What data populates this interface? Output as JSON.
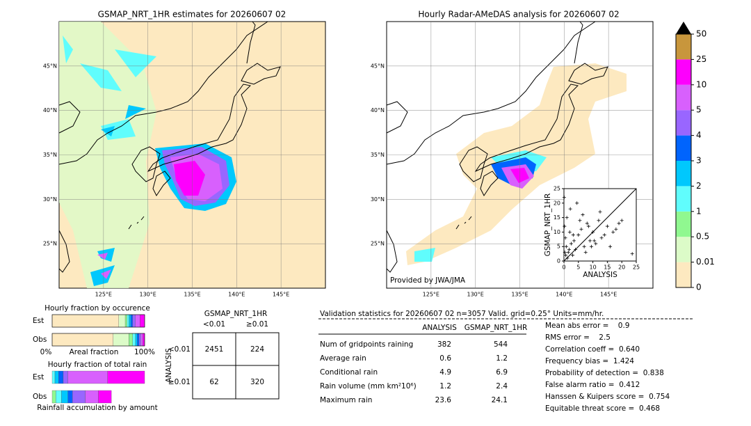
{
  "left_map": {
    "title": "GSMAP_NRT_1HR estimates for 20260607 02",
    "lat_labels": [
      "45°N",
      "40°N",
      "35°N",
      "30°N",
      "25°N"
    ],
    "lon_labels": [
      "125°E",
      "130°E",
      "135°E",
      "140°E",
      "145°E"
    ]
  },
  "right_map": {
    "title": "Hourly Radar-AMeDAS analysis for 20260607 02",
    "lat_labels": [
      "45°N",
      "40°N",
      "35°N",
      "30°N",
      "25°N"
    ],
    "lon_labels": [
      "125°E",
      "130°E",
      "135°E",
      "140°E",
      "145°E"
    ],
    "credit": "Provided by JWA/JMA"
  },
  "colorbar": {
    "ticks": [
      0,
      0.01,
      0.5,
      1,
      2,
      3,
      4,
      5,
      10,
      25,
      50
    ],
    "colors": [
      "#fde9c0",
      "#dcfbc8",
      "#90f890",
      "#60fdfd",
      "#00c8fd",
      "#0064fd",
      "#9966ff",
      "#d860fd",
      "#fd00fd",
      "#c8963c"
    ]
  },
  "scatter": {
    "type": "scatter",
    "xlabel": "ANALYSIS",
    "ylabel": "GSMAP_NRT_1HR",
    "xlim": [
      0,
      25
    ],
    "ylim": [
      0,
      25
    ],
    "xticks": [
      0,
      5,
      10,
      15,
      20,
      25
    ],
    "yticks": [
      0,
      5,
      10,
      15,
      20,
      25
    ],
    "x": [
      0.2,
      0.5,
      0.8,
      1,
      1.5,
      2,
      2.5,
      3,
      3.5,
      4,
      5,
      6,
      7,
      8,
      9,
      10,
      11,
      12,
      13,
      14,
      15,
      16,
      18,
      20,
      23.6,
      0.3,
      1.2,
      2.2,
      4.5,
      6.5,
      8.5,
      10.5,
      12.5,
      0.1,
      0.6,
      1.8,
      3.2,
      5.5,
      7.5,
      17,
      19,
      9.5
    ],
    "y": [
      12,
      8,
      5,
      15,
      3,
      10,
      6,
      2,
      7,
      4,
      9,
      11,
      5,
      13,
      7,
      10,
      6,
      14,
      8,
      9,
      12,
      5,
      11,
      14,
      2.5,
      3,
      1,
      18,
      20,
      16,
      12,
      7,
      17,
      22,
      2,
      4,
      9,
      14,
      3,
      10,
      13,
      5
    ]
  },
  "occurrence": {
    "title": "Hourly fraction by occurence",
    "rows": [
      "Est",
      "Obs"
    ],
    "axis_labels": [
      "0%",
      "Areal fraction",
      "100%"
    ],
    "est": [
      {
        "color": "#fde9c0",
        "value": 72
      },
      {
        "color": "#dcfbc8",
        "value": 7
      },
      {
        "color": "#90f890",
        "value": 2
      },
      {
        "color": "#60fdfd",
        "value": 2
      },
      {
        "color": "#00c8fd",
        "value": 2
      },
      {
        "color": "#0064fd",
        "value": 2
      },
      {
        "color": "#9966ff",
        "value": 3
      },
      {
        "color": "#d860fd",
        "value": 5
      },
      {
        "color": "#fd00fd",
        "value": 5
      }
    ],
    "obs": [
      {
        "color": "#fde9c0",
        "value": 66
      },
      {
        "color": "#dcfbc8",
        "value": 17
      },
      {
        "color": "#90f890",
        "value": 4
      },
      {
        "color": "#60fdfd",
        "value": 3
      },
      {
        "color": "#00c8fd",
        "value": 2
      },
      {
        "color": "#0064fd",
        "value": 2
      },
      {
        "color": "#9966ff",
        "value": 2
      },
      {
        "color": "#d860fd",
        "value": 2
      },
      {
        "color": "#fd00fd",
        "value": 2
      }
    ]
  },
  "total": {
    "title": "Hourly fraction of total rain",
    "rows": [
      "Est",
      "Obs"
    ],
    "footer": "Rainfall accumulation by amount",
    "est": [
      {
        "color": "#60fdfd",
        "value": 3
      },
      {
        "color": "#00c8fd",
        "value": 4
      },
      {
        "color": "#0064fd",
        "value": 5
      },
      {
        "color": "#9966ff",
        "value": 5
      },
      {
        "color": "#d860fd",
        "value": 43
      },
      {
        "color": "#fd00fd",
        "value": 40
      }
    ],
    "obs": [
      {
        "color": "#90f890",
        "value": 4
      },
      {
        "color": "#60fdfd",
        "value": 6
      },
      {
        "color": "#00c8fd",
        "value": 7
      },
      {
        "color": "#0064fd",
        "value": 5
      },
      {
        "color": "#9966ff",
        "value": 14
      },
      {
        "color": "#d860fd",
        "value": 14
      },
      {
        "color": "#fd00fd",
        "value": 14
      }
    ]
  },
  "contingency": {
    "title": "GSMAP_NRT_1HR",
    "columns": [
      "<0.01",
      "≥0.01"
    ],
    "axis_label": "ANALYSIS",
    "rows": [
      {
        "label": "<0.01",
        "cells": [
          2451,
          224
        ]
      },
      {
        "label": "≥0.01",
        "cells": [
          62,
          320
        ]
      }
    ]
  },
  "validation": {
    "title": "Validation statistics for 20260607 02  n=3057 Valid. grid=0.25° Units=mm/hr.",
    "columns": [
      "ANALYSIS",
      "GSMAP_NRT_1HR"
    ],
    "rows": [
      [
        "Num of gridpoints raining",
        382,
        544
      ],
      [
        "Average rain",
        0.6,
        1.2
      ],
      [
        "Conditional rain",
        4.9,
        6.9
      ],
      [
        "Rain volume (mm km²10⁶)",
        1.2,
        2.4
      ],
      [
        "Maximum rain",
        23.6,
        24.1
      ]
    ],
    "scores": [
      "Mean abs error =    0.9",
      "RMS error =    2.5",
      "Correlation coeff =  0.640",
      "Frequency bias =  1.424",
      "Probability of detection =  0.838",
      "False alarm ratio =  0.412",
      "Hanssen & Kuipers score =  0.754",
      "Equitable threat score =  0.468"
    ]
  }
}
